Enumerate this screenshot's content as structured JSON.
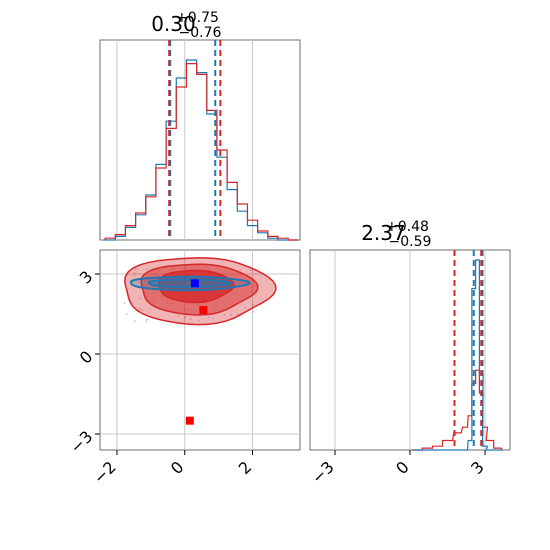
{
  "chart_data": {
    "type": "corner",
    "colors": {
      "red": "#d62728",
      "blue": "#1f77b4",
      "grid": "#c8c8c8",
      "frame": "#6f6f6f"
    },
    "param1": {
      "title": {
        "value": "0.30",
        "plus": "+0.75",
        "minus": "−0.76"
      },
      "xlim": [
        -2.5,
        3.4
      ],
      "xticks": [
        -2,
        0,
        2
      ],
      "xtick_labels": [
        "−2",
        "0",
        "2"
      ],
      "quantiles_red": [
        -0.46,
        1.05
      ],
      "quantiles_blue": [
        -0.43,
        0.9
      ],
      "hist_x": [
        -2.2,
        -1.9,
        -1.6,
        -1.3,
        -1.0,
        -0.7,
        -0.4,
        -0.1,
        0.2,
        0.5,
        0.8,
        1.1,
        1.4,
        1.7,
        2.0,
        2.3,
        2.6,
        2.9,
        3.2
      ],
      "hist_red": [
        0.01,
        0.03,
        0.08,
        0.15,
        0.24,
        0.4,
        0.62,
        0.85,
        0.98,
        0.92,
        0.72,
        0.5,
        0.32,
        0.2,
        0.11,
        0.05,
        0.02,
        0.01,
        0.0
      ],
      "hist_blue": [
        0.0,
        0.02,
        0.07,
        0.14,
        0.25,
        0.42,
        0.66,
        0.9,
        1.0,
        0.93,
        0.7,
        0.46,
        0.28,
        0.16,
        0.08,
        0.04,
        0.01,
        0.0,
        0.0
      ]
    },
    "param2": {
      "title": {
        "value": "2.37",
        "plus": "+0.48",
        "minus": "−0.59"
      },
      "xlim": [
        -4.0,
        4.0
      ],
      "ylim": [
        -3.6,
        3.9
      ],
      "ticks": [
        -3,
        0,
        3
      ],
      "tick_labels": [
        "−3",
        "0",
        "3"
      ],
      "quantiles_red": [
        1.78,
        2.85
      ],
      "quantiles_blue": [
        2.55,
        2.9
      ],
      "hist_x": [
        0.3,
        0.7,
        1.1,
        1.5,
        1.9,
        2.2,
        2.4,
        2.55,
        2.7,
        2.85,
        3.0,
        3.2,
        3.5
      ],
      "hist_red": [
        0.0,
        0.01,
        0.02,
        0.05,
        0.09,
        0.12,
        0.18,
        0.35,
        0.42,
        0.3,
        0.12,
        0.05,
        0.01
      ],
      "hist_blue": [
        0.0,
        0.0,
        0.0,
        0.0,
        0.0,
        0.0,
        0.05,
        0.85,
        1.0,
        0.4,
        0.02,
        0.0,
        0.0
      ]
    },
    "markers": [
      {
        "color": "blue",
        "x": 0.3,
        "y": 2.65
      },
      {
        "color": "red",
        "x": 0.55,
        "y": 1.65
      },
      {
        "color": "red",
        "x": 0.15,
        "y": -2.5
      }
    ],
    "grid": true
  }
}
